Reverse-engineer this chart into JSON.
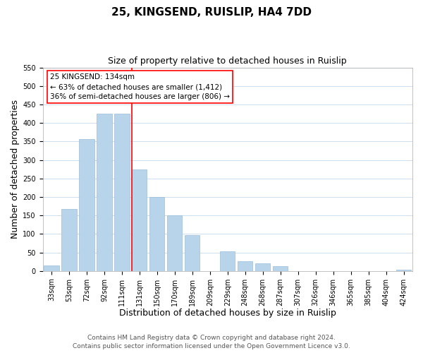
{
  "title": "25, KINGSEND, RUISLIP, HA4 7DD",
  "subtitle": "Size of property relative to detached houses in Ruislip",
  "xlabel": "Distribution of detached houses by size in Ruislip",
  "ylabel": "Number of detached properties",
  "categories": [
    "33sqm",
    "53sqm",
    "72sqm",
    "92sqm",
    "111sqm",
    "131sqm",
    "150sqm",
    "170sqm",
    "189sqm",
    "209sqm",
    "229sqm",
    "248sqm",
    "268sqm",
    "287sqm",
    "307sqm",
    "326sqm",
    "346sqm",
    "365sqm",
    "385sqm",
    "404sqm",
    "424sqm"
  ],
  "values": [
    15,
    168,
    357,
    425,
    425,
    275,
    200,
    150,
    97,
    0,
    53,
    27,
    20,
    13,
    0,
    0,
    0,
    0,
    0,
    0,
    3
  ],
  "bar_color": "#b8d4ea",
  "bar_edge_color": "#9bbcd8",
  "vline_color": "red",
  "vline_index": 5,
  "ylim": [
    0,
    550
  ],
  "yticks": [
    0,
    50,
    100,
    150,
    200,
    250,
    300,
    350,
    400,
    450,
    500,
    550
  ],
  "annotation_title": "25 KINGSEND: 134sqm",
  "annotation_line1": "← 63% of detached houses are smaller (1,412)",
  "annotation_line2": "36% of semi-detached houses are larger (806) →",
  "footer1": "Contains HM Land Registry data © Crown copyright and database right 2024.",
  "footer2": "Contains public sector information licensed under the Open Government Licence v3.0.",
  "background_color": "#ffffff",
  "grid_color": "#c8d8ea",
  "title_fontsize": 11,
  "subtitle_fontsize": 9,
  "axis_label_fontsize": 9,
  "tick_fontsize": 7,
  "annotation_fontsize": 7.5,
  "footer_fontsize": 6.5
}
